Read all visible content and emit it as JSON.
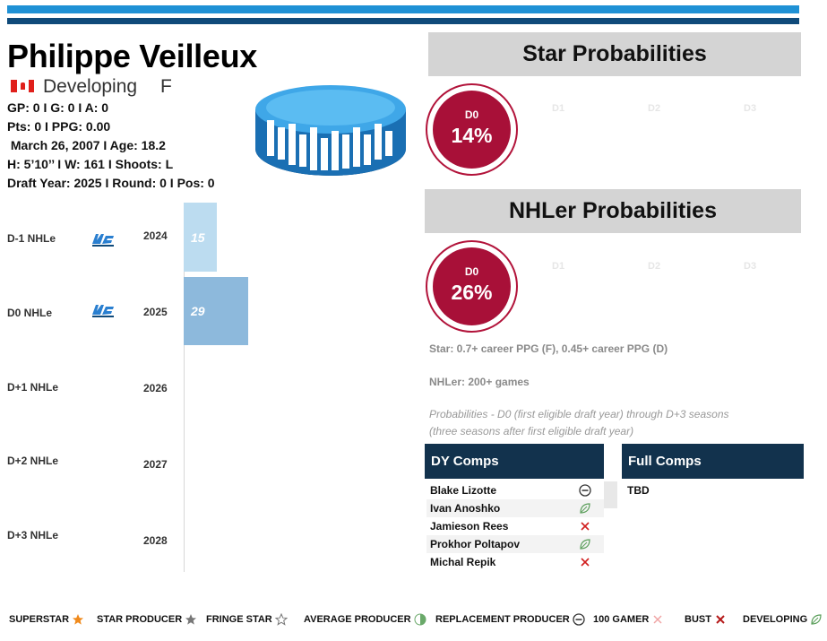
{
  "player": {
    "name": "Philippe Veilleux",
    "status": "Developing",
    "position": "F",
    "stats_line1": "GP: 0 I G: 0 I A: 0",
    "stats_line2": "Pts: 0 I PPG: 0.00",
    "stats_line3": " March 26, 2007 I Age: 18.2",
    "stats_line4": "H: 5’10’’ I W: 161 I Shoots: L",
    "stats_line5": "Draft Year: 2025 I Round: 0 I Pos: 0"
  },
  "seasons": [
    {
      "label": "D-1 NHLe",
      "year": "2024",
      "value": 15,
      "has_logo": true,
      "logo_icon": "qmjhl-logo-icon"
    },
    {
      "label": "D0 NHLe",
      "year": "2025",
      "value": 29,
      "has_logo": true,
      "logo_icon": "qmjhl-logo-icon"
    },
    {
      "label": "D+1 NHLe",
      "year": "2026",
      "value": null,
      "has_logo": false
    },
    {
      "label": "D+2 NHLe",
      "year": "2027",
      "value": null,
      "has_logo": false
    },
    {
      "label": "D+3 NHLe",
      "year": "2028",
      "value": null,
      "has_logo": false
    }
  ],
  "colors": {
    "top_bar": "#1f91d5",
    "second_bar": "#0f4a7a",
    "bar_d_minus_1": "#bcdcf0",
    "bar_d0": "#8db9dc",
    "circle": "#a81038",
    "comps_header": "#12324d"
  },
  "star": {
    "title": "Star Probabilities",
    "d0_label": "D0",
    "d0_pct": "14%",
    "d1": "D1",
    "d2": "D2",
    "d3": "D3"
  },
  "nhler": {
    "title": "NHLer Probabilities",
    "d0_label": "D0",
    "d0_pct": "26%",
    "d1": "D1",
    "d2": "D2",
    "d3": "D3"
  },
  "notes": {
    "star_def": "Star: 0.7+ career PPG (F), 0.45+ career PPG (D)",
    "nhler_def": "NHLer: 200+ games",
    "prob_line1": "Probabilities - D0 (first eligible draft year) through D+3 seasons",
    "prob_line2": "(three seasons after first eligible draft year)"
  },
  "dy_comps": {
    "title": "DY Comps",
    "items": [
      {
        "name": "Blake Lizotte",
        "icon": "replacement-producer-icon"
      },
      {
        "name": "Ivan Anoshko",
        "icon": "developing-leaf-icon"
      },
      {
        "name": "Jamieson Rees",
        "icon": "bust-x-icon"
      },
      {
        "name": "Prokhor Poltapov",
        "icon": "developing-leaf-icon"
      },
      {
        "name": "Michal Repik",
        "icon": "bust-x-icon"
      }
    ]
  },
  "full_comps": {
    "title": "Full Comps",
    "value": "TBD"
  },
  "legend": {
    "superstar": "SUPERSTAR",
    "star_producer": "STAR PRODUCER",
    "fringe_star": "FRINGE STAR",
    "average_producer": "AVERAGE PRODUCER",
    "replacement_producer": "REPLACEMENT PRODUCER",
    "hundred_gamer": "100 GAMER",
    "bust": "BUST",
    "developing": "DEVELOPING"
  }
}
